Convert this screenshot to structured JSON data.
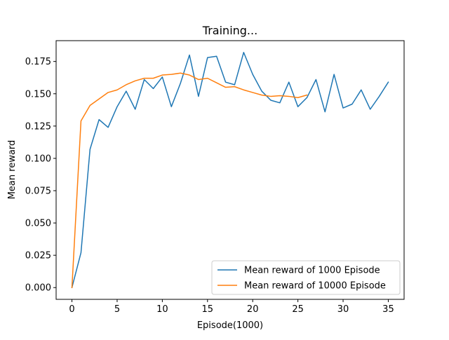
{
  "chart_data": {
    "type": "line",
    "title": "Training...",
    "xlabel": "Episode(1000)",
    "ylabel": "Mean reward",
    "xlim": [
      -1.75,
      36.75
    ],
    "ylim": [
      -0.0091,
      0.1911
    ],
    "xticks": [
      0,
      5,
      10,
      15,
      20,
      25,
      30,
      35
    ],
    "xtick_labels": [
      "0",
      "5",
      "10",
      "15",
      "20",
      "25",
      "30",
      "35"
    ],
    "yticks": [
      0.0,
      0.025,
      0.05,
      0.075,
      0.1,
      0.125,
      0.15,
      0.175
    ],
    "ytick_labels": [
      "0.000",
      "0.025",
      "0.050",
      "0.075",
      "0.100",
      "0.125",
      "0.150",
      "0.175"
    ],
    "grid": false,
    "legend_position": "bottom-right",
    "series": [
      {
        "name": "Mean reward of 1000 Episode",
        "color": "#1f77b4",
        "x": [
          0,
          1,
          2,
          3,
          4,
          5,
          6,
          7,
          8,
          9,
          10,
          11,
          12,
          13,
          14,
          15,
          16,
          17,
          18,
          19,
          20,
          21,
          22,
          23,
          24,
          25,
          26,
          27,
          28,
          29,
          30,
          31,
          32,
          33,
          34,
          35
        ],
        "values": [
          0.0,
          0.027,
          0.107,
          0.13,
          0.124,
          0.14,
          0.152,
          0.138,
          0.161,
          0.154,
          0.163,
          0.14,
          0.158,
          0.18,
          0.148,
          0.178,
          0.179,
          0.159,
          0.157,
          0.182,
          0.165,
          0.152,
          0.145,
          0.143,
          0.159,
          0.14,
          0.147,
          0.161,
          0.136,
          0.165,
          0.139,
          0.142,
          0.153,
          0.138,
          0.148,
          0.159
        ]
      },
      {
        "name": "Mean reward of 10000 Episode",
        "color": "#ff7f0e",
        "x": [
          0,
          1,
          2,
          3,
          4,
          5,
          6,
          7,
          8,
          9,
          10,
          11,
          12,
          13,
          14,
          15,
          16,
          17,
          18,
          19,
          20,
          21,
          22,
          23,
          24,
          25,
          26
        ],
        "values": [
          0.0,
          0.129,
          0.141,
          0.146,
          0.151,
          0.153,
          0.157,
          0.16,
          0.162,
          0.162,
          0.1645,
          0.165,
          0.166,
          0.1645,
          0.161,
          0.162,
          0.1585,
          0.155,
          0.1555,
          0.153,
          0.151,
          0.149,
          0.148,
          0.1485,
          0.148,
          0.147,
          0.149
        ]
      }
    ]
  }
}
